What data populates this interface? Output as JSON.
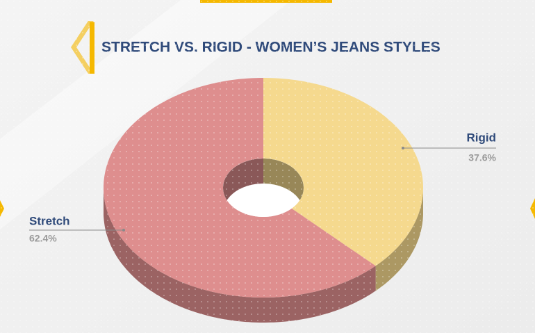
{
  "chart_data": {
    "type": "donut3d",
    "title": "STRETCH VS. RIGID - WOMEN’S JEANS STYLES",
    "categories": [
      "Rigid",
      "Stretch"
    ],
    "values": [
      37.6,
      62.4
    ],
    "value_labels": [
      "37.6%",
      "62.4%"
    ],
    "colors": [
      "#f5d98e",
      "#de8e8e"
    ]
  }
}
